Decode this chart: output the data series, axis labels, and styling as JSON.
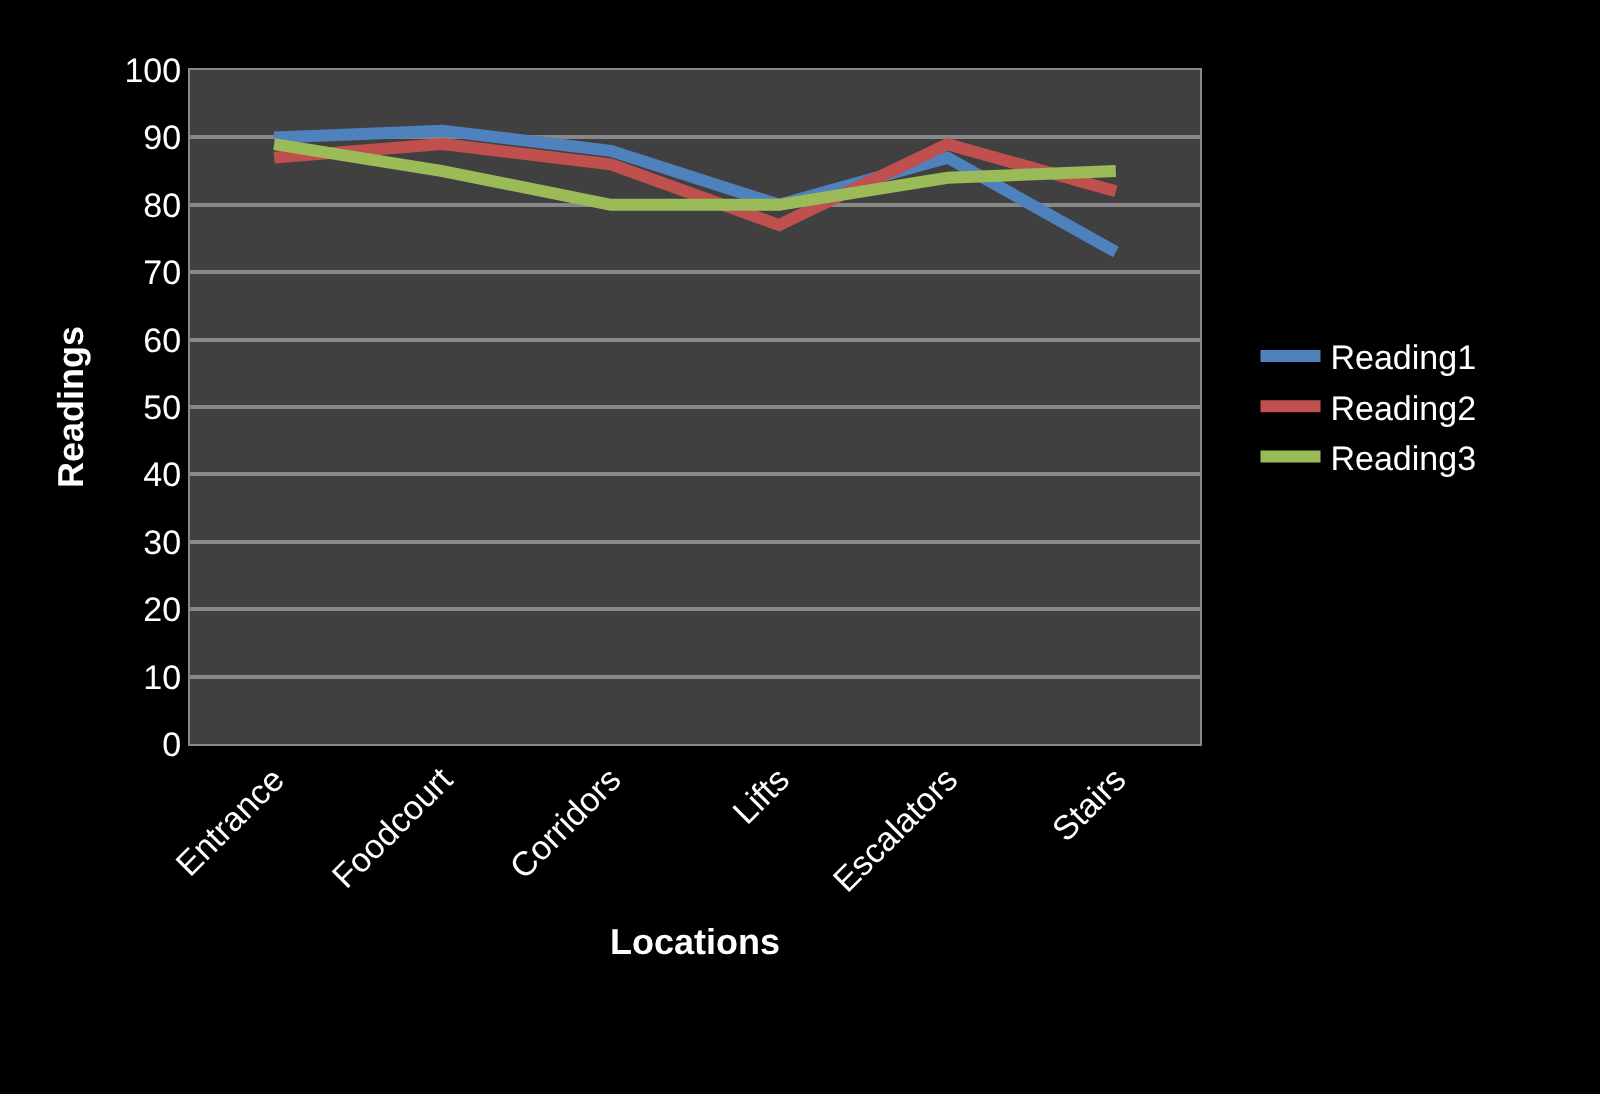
{
  "chart_data": {
    "type": "line",
    "xlabel": "Locations",
    "ylabel": "Readings",
    "categories": [
      "Entrance",
      "Foodcourt",
      "Corridors",
      "Lifts",
      "Escalators",
      "Stairs"
    ],
    "series": [
      {
        "name": "Reading1",
        "color": "#4f81bd",
        "values": [
          90,
          91,
          88,
          80,
          87,
          73
        ]
      },
      {
        "name": "Reading2",
        "color": "#c0504d",
        "values": [
          87,
          89,
          86,
          77,
          89,
          82
        ]
      },
      {
        "name": "Reading3",
        "color": "#9bbb59",
        "values": [
          89,
          85,
          80,
          80,
          84,
          85
        ]
      }
    ],
    "ylim": [
      0,
      100
    ],
    "yticks": [
      0,
      10,
      20,
      30,
      40,
      50,
      60,
      70,
      80,
      90,
      100
    ],
    "grid": "y",
    "legend": "right",
    "marker": "none",
    "line_style": "solid"
  }
}
